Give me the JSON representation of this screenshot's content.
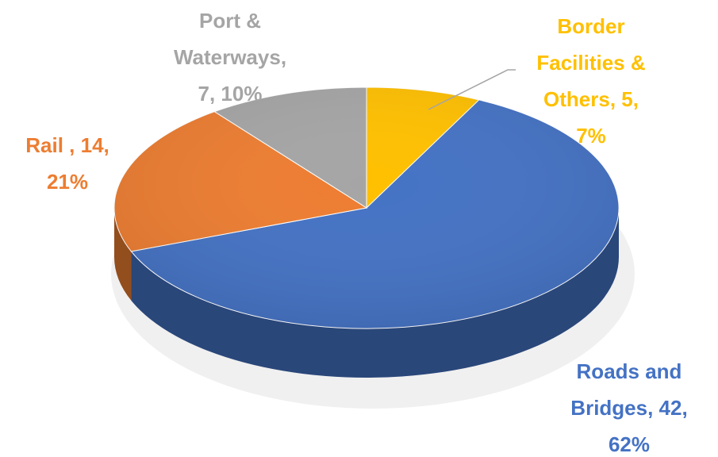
{
  "chart_data": {
    "type": "pie3d",
    "categories": [
      "Border Facilities & Others",
      "Roads and Bridges",
      "Rail ",
      "Port & Waterways"
    ],
    "values": [
      5,
      42,
      14,
      7
    ],
    "value_labels": [
      "Border Facilities & Others, 5, 7%",
      "Roads and Bridges, 42, 62%",
      "Rail , 14, 21%",
      "Port & Waterways, 7, 10%"
    ],
    "colors": [
      "#ffc000",
      "#4472c4",
      "#ed7d31",
      "#a5a5a5"
    ]
  }
}
